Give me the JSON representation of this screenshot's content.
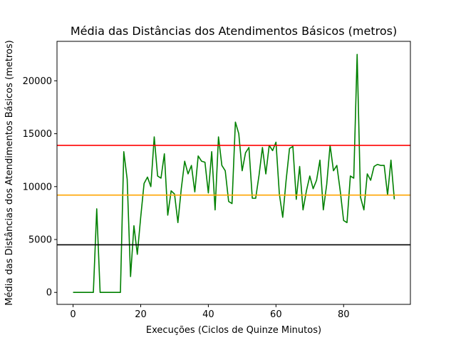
{
  "chart_data": {
    "type": "line",
    "title": "Média das Distâncias dos Atendimentos Básicos (metros)",
    "xlabel": "Execuções (Ciclos de Quinze Minutos)",
    "ylabel": "Média das Distâncias dos Atendimentos Básicos (metros)",
    "xlim": [
      -4.75,
      99.75
    ],
    "ylim": [
      -1130,
      23730
    ],
    "xticks": [
      0,
      20,
      40,
      60,
      80
    ],
    "yticks": [
      0,
      5000,
      10000,
      15000,
      20000
    ],
    "xtick_labels": [
      "0",
      "20",
      "40",
      "60",
      "80"
    ],
    "ytick_labels": [
      "0",
      "5000",
      "10000",
      "15000",
      "20000"
    ],
    "grid": false,
    "legend": "none",
    "series": [
      {
        "color": "#008000",
        "x": [
          0,
          1,
          2,
          3,
          4,
          5,
          6,
          7,
          8,
          9,
          10,
          11,
          12,
          13,
          14,
          15,
          16,
          17,
          18,
          19,
          20,
          21,
          22,
          23,
          24,
          25,
          26,
          27,
          28,
          29,
          30,
          31,
          32,
          33,
          34,
          35,
          36,
          37,
          38,
          39,
          40,
          41,
          42,
          43,
          44,
          45,
          46,
          47,
          48,
          49,
          50,
          51,
          52,
          53,
          54,
          55,
          56,
          57,
          58,
          59,
          60,
          61,
          62,
          63,
          64,
          65,
          66,
          67,
          68,
          69,
          70,
          71,
          72,
          73,
          74,
          75,
          76,
          77,
          78,
          79,
          80,
          81,
          82,
          83,
          84,
          85,
          86,
          87,
          88,
          89,
          90,
          91,
          92,
          93,
          94,
          95
        ],
        "y": [
          0,
          0,
          0,
          0,
          0,
          0,
          0,
          7900,
          0,
          0,
          0,
          0,
          0,
          0,
          0,
          13300,
          10700,
          1500,
          6300,
          3600,
          7100,
          10300,
          10900,
          10000,
          14700,
          11000,
          10800,
          13100,
          7300,
          9600,
          9300,
          6600,
          9800,
          12400,
          11200,
          12000,
          9500,
          12900,
          12400,
          12300,
          9400,
          13300,
          7800,
          14700,
          12000,
          11500,
          8600,
          8400,
          16100,
          15000,
          11500,
          13200,
          13700,
          8900,
          8900,
          11100,
          13700,
          11200,
          13900,
          13400,
          14200,
          9300,
          7100,
          10600,
          13600,
          13800,
          8800,
          11900,
          7800,
          9600,
          11000,
          9800,
          10600,
          12500,
          7800,
          10200,
          13900,
          11500,
          12000,
          9600,
          6800,
          6600,
          11000,
          10800,
          22500,
          9000,
          7800,
          11200,
          10600,
          11900,
          12100,
          12000,
          12000,
          9200,
          12500,
          8800
        ]
      }
    ],
    "reference_lines": [
      {
        "y": 13900,
        "color": "#ff0000"
      },
      {
        "y": 9200,
        "color": "#ffa500"
      },
      {
        "y": 4500,
        "color": "#000000"
      }
    ]
  }
}
